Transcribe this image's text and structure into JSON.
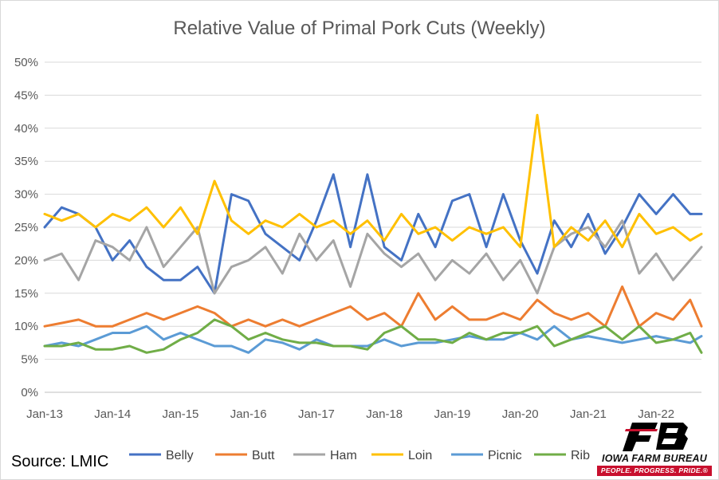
{
  "chart_data": {
    "type": "line",
    "title": "Relative Value of Primal Pork Cuts (Weekly)",
    "xlabel": "",
    "ylabel": "",
    "ylim": [
      0,
      50
    ],
    "y_ticks": [
      "0%",
      "5%",
      "10%",
      "15%",
      "20%",
      "25%",
      "30%",
      "35%",
      "40%",
      "45%",
      "50%"
    ],
    "x_ticks": [
      "Jan-13",
      "Jan-14",
      "Jan-15",
      "Jan-16",
      "Jan-17",
      "Jan-18",
      "Jan-19",
      "Jan-20",
      "Jan-21",
      "Jan-22"
    ],
    "x_range": [
      "2013-01",
      "2022-09"
    ],
    "grid": "horizontal",
    "legend_position": "bottom",
    "x": [
      "2013-01",
      "2013-04",
      "2013-07",
      "2013-10",
      "2014-01",
      "2014-04",
      "2014-07",
      "2014-10",
      "2015-01",
      "2015-04",
      "2015-07",
      "2015-10",
      "2016-01",
      "2016-04",
      "2016-07",
      "2016-10",
      "2017-01",
      "2017-04",
      "2017-07",
      "2017-10",
      "2018-01",
      "2018-04",
      "2018-07",
      "2018-10",
      "2019-01",
      "2019-04",
      "2019-07",
      "2019-10",
      "2020-01",
      "2020-04",
      "2020-07",
      "2020-10",
      "2021-01",
      "2021-04",
      "2021-07",
      "2021-10",
      "2022-01",
      "2022-04",
      "2022-07",
      "2022-09"
    ],
    "series": [
      {
        "name": "Belly",
        "color": "#4472c4",
        "values": [
          25,
          28,
          27,
          25,
          20,
          23,
          19,
          17,
          17,
          19,
          15,
          30,
          29,
          24,
          22,
          20,
          26,
          33,
          22,
          33,
          22,
          20,
          27,
          22,
          29,
          30,
          22,
          30,
          23,
          18,
          26,
          22,
          27,
          21,
          25,
          30,
          27,
          30,
          27,
          27
        ]
      },
      {
        "name": "Butt",
        "color": "#ed7d31",
        "values": [
          10,
          10.5,
          11,
          10,
          10,
          11,
          12,
          11,
          12,
          13,
          12,
          10,
          11,
          10,
          11,
          10,
          11,
          12,
          13,
          11,
          12,
          10,
          15,
          11,
          13,
          11,
          11,
          12,
          11,
          14,
          12,
          11,
          12,
          10,
          16,
          10,
          12,
          11,
          14,
          10
        ]
      },
      {
        "name": "Ham",
        "color": "#a5a5a5",
        "values": [
          20,
          21,
          17,
          23,
          22,
          20,
          25,
          19,
          22,
          25,
          15,
          19,
          20,
          22,
          18,
          24,
          20,
          23,
          16,
          24,
          21,
          19,
          21,
          17,
          20,
          18,
          21,
          17,
          20,
          15,
          22,
          24,
          25,
          22,
          26,
          18,
          21,
          17,
          20,
          22
        ]
      },
      {
        "name": "Loin",
        "color": "#ffc000",
        "values": [
          27,
          26,
          27,
          25,
          27,
          26,
          28,
          25,
          28,
          24,
          32,
          26,
          24,
          26,
          25,
          27,
          25,
          26,
          24,
          26,
          23,
          27,
          24,
          25,
          23,
          25,
          24,
          25,
          22,
          42,
          22,
          25,
          23,
          26,
          22,
          27,
          24,
          25,
          23,
          24
        ]
      },
      {
        "name": "Picnic",
        "color": "#5b9bd5",
        "values": [
          7,
          7.5,
          7,
          8,
          9,
          9,
          10,
          8,
          9,
          8,
          7,
          7,
          6,
          8,
          7.5,
          6.5,
          8,
          7,
          7,
          7,
          8,
          7,
          7.5,
          7.5,
          8,
          8.5,
          8,
          8,
          9,
          8,
          10,
          8,
          8.5,
          8,
          7.5,
          8,
          8.5,
          8,
          7.5,
          8.5
        ]
      },
      {
        "name": "Rib",
        "color": "#70ad47",
        "values": [
          7,
          7,
          7.5,
          6.5,
          6.5,
          7,
          6,
          6.5,
          8,
          9,
          11,
          10,
          8,
          9,
          8,
          7.5,
          7.5,
          7,
          7,
          6.5,
          9,
          10,
          8,
          8,
          7.5,
          9,
          8,
          9,
          9,
          10,
          7,
          8,
          9,
          10,
          8,
          10,
          7.5,
          8,
          9,
          6
        ]
      }
    ]
  },
  "footer": {
    "source": "Source: LMIC",
    "logo_name": "IOWA FARM BUREAU",
    "logo_tagline": "PEOPLE. PROGRESS. PRIDE.®"
  }
}
